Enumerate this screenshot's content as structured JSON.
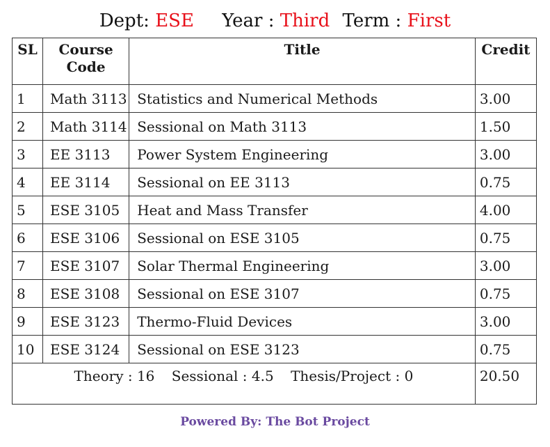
{
  "header": {
    "dept_label": "Dept:",
    "dept_value": "ESE",
    "year_label": "Year :",
    "year_value": "Third",
    "term_label": "Term :",
    "term_value": "First"
  },
  "table": {
    "columns": [
      "SL",
      "Course Code",
      "Title",
      "Credit"
    ],
    "rows": [
      {
        "sl": "1",
        "code": "Math 3113",
        "title": "Statistics and Numerical Methods",
        "credit": "3.00"
      },
      {
        "sl": "2",
        "code": "Math 3114",
        "title": "Sessional on Math 3113",
        "credit": "1.50"
      },
      {
        "sl": "3",
        "code": "EE 3113",
        "title": "Power System Engineering",
        "credit": "3.00"
      },
      {
        "sl": "4",
        "code": "EE 3114",
        "title": "Sessional on EE 3113",
        "credit": "0.75"
      },
      {
        "sl": "5",
        "code": "ESE 3105",
        "title": "Heat and Mass Transfer",
        "credit": "4.00"
      },
      {
        "sl": "6",
        "code": "ESE 3106",
        "title": "Sessional on ESE 3105",
        "credit": "0.75"
      },
      {
        "sl": "7",
        "code": "ESE 3107",
        "title": "Solar Thermal Engineering",
        "credit": "3.00"
      },
      {
        "sl": "8",
        "code": "ESE 3108",
        "title": "Sessional on ESE 3107",
        "credit": "0.75"
      },
      {
        "sl": "9",
        "code": "ESE 3123",
        "title": "Thermo-Fluid Devices",
        "credit": "3.00"
      },
      {
        "sl": "10",
        "code": "ESE 3124",
        "title": "Sessional on ESE 3123",
        "credit": "0.75"
      }
    ],
    "summary": {
      "theory": "Theory : 16",
      "sessional": "Sessional : 4.5",
      "thesis": "Thesis/Project : 0",
      "total_credit": "20.50"
    }
  },
  "footer": {
    "text": "Powered By: The Bot Project"
  },
  "colors": {
    "accent_red": "#e8101a",
    "footer_purple": "#6a4aa0"
  }
}
